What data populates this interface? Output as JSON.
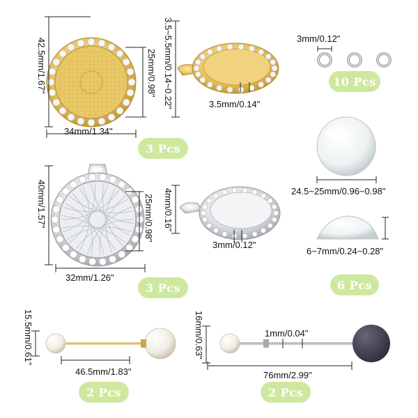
{
  "products": {
    "gold_round_tray": {
      "height_label": "42.5mm/1.67\"",
      "inner_label": "25mm/0.98\"",
      "width_label": "34mm/1.34\"",
      "quantity": "3 Pcs"
    },
    "gold_tray_side": {
      "depth_label": "3.5~5.5mm/0.14~0.22\"",
      "rim_label": "3.5mm/0.14\""
    },
    "jump_rings": {
      "size_label": "3mm/0.12\"",
      "quantity": "10 Pcs"
    },
    "glass_cabochon": {
      "diameter_label": "24.5~25mm/0.96~0.98\"",
      "thickness_label": "6~7mm/0.24~0.28\"",
      "quantity": "6 Pcs"
    },
    "silver_round_tray": {
      "height_label": "40mm/1.57\"",
      "inner_label": "25mm/0.98\"",
      "width_label": "32mm/1.26\"",
      "quantity": "3 Pcs"
    },
    "silver_tray_side": {
      "depth_label": "4mm/0.16\"",
      "rim_label": "3mm/0.12\""
    },
    "pearl_brooch_pin": {
      "height_label": "15.5mm/0.61\"",
      "length_label": "46.5mm/1.83\"",
      "quantity": "2 Pcs"
    },
    "purple_brooch_pin": {
      "height_label": "16mm/0.63\"",
      "pin_label": "1mm/0.04\"",
      "length_label": "76mm/2.99\"",
      "quantity": "2 Pcs"
    }
  },
  "colors": {
    "badge_green": "#cfe8a0",
    "gold": "#e8c766",
    "silver": "#d6d8dc",
    "purple_ball": "#4a4558",
    "dimension_line": "#222222"
  }
}
